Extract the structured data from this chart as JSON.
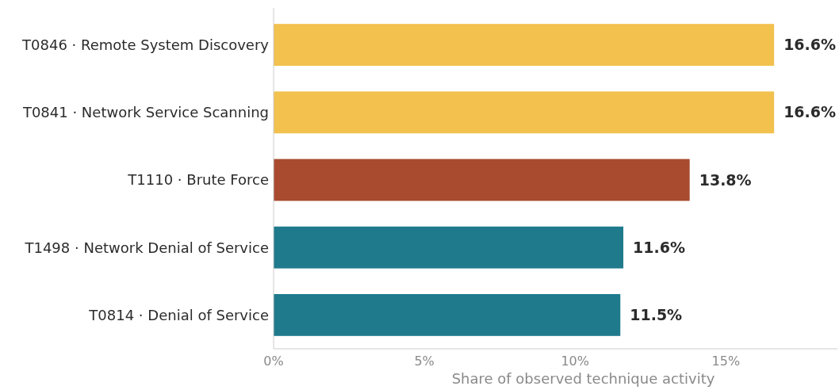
{
  "chart_data": {
    "type": "bar",
    "orientation": "horizontal",
    "xlabel": "Share of observed technique activity",
    "categories": [
      "T0846 · Remote System Discovery",
      "T0841 · Network Service Scanning",
      "T1110 · Brute Force",
      "T1498 · Network Denial of Service",
      "T0814 · Denial of Service"
    ],
    "values": [
      16.6,
      16.6,
      13.8,
      11.6,
      11.5
    ],
    "colors": [
      "#f2c14e",
      "#f2c14e",
      "#a84b2f",
      "#1f7a8c",
      "#1f7a8c"
    ],
    "value_labels": [
      "16.6%",
      "16.6%",
      "13.8%",
      "11.6%",
      "11.5%"
    ],
    "xlim": [
      0,
      18.7
    ],
    "xticks": [
      {
        "value": 0,
        "label": "0%"
      },
      {
        "value": 5,
        "label": "5%"
      },
      {
        "value": 10,
        "label": "10%"
      },
      {
        "value": 15,
        "label": "15%"
      }
    ],
    "grid": false
  }
}
